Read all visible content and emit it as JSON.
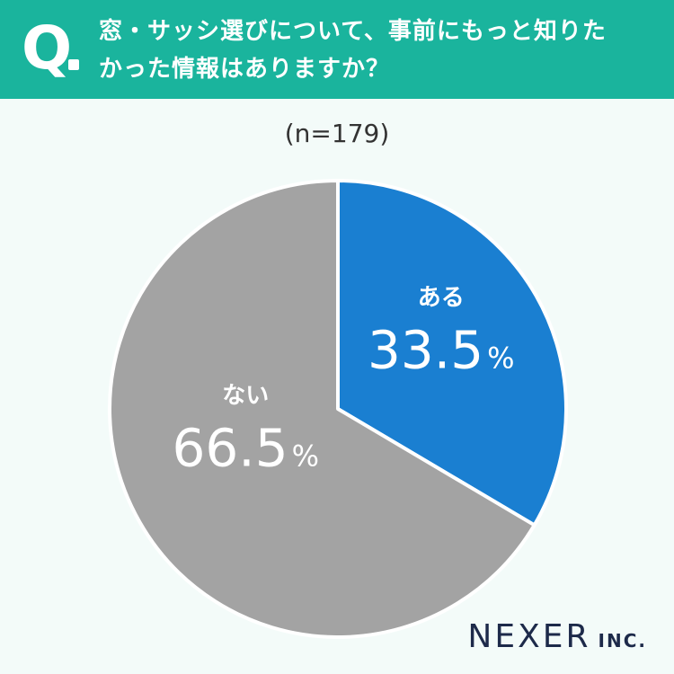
{
  "header": {
    "q_mark": "Q",
    "question_lines": [
      "窓・サッシ選びについて、事前にもっと知りた",
      "かった情報はありますか？"
    ]
  },
  "sample_label": "(n=179)",
  "logo": {
    "main": "NEXER",
    "sub": "INC."
  },
  "colors": {
    "header_bg": "#1ab49d",
    "slice_aru": "#1a7fd1",
    "slice_nai": "#a3a3a3",
    "background": "#f3fbf9"
  },
  "chart_data": {
    "type": "pie",
    "title": "窓・サッシ選びについて、事前にもっと知りたかった情報はありますか？",
    "slices": [
      {
        "label": "ある",
        "value": 33.5,
        "display": "33.5",
        "unit": "%",
        "color": "#1a7fd1"
      },
      {
        "label": "ない",
        "value": 66.5,
        "display": "66.5",
        "unit": "%",
        "color": "#a3a3a3"
      }
    ]
  }
}
